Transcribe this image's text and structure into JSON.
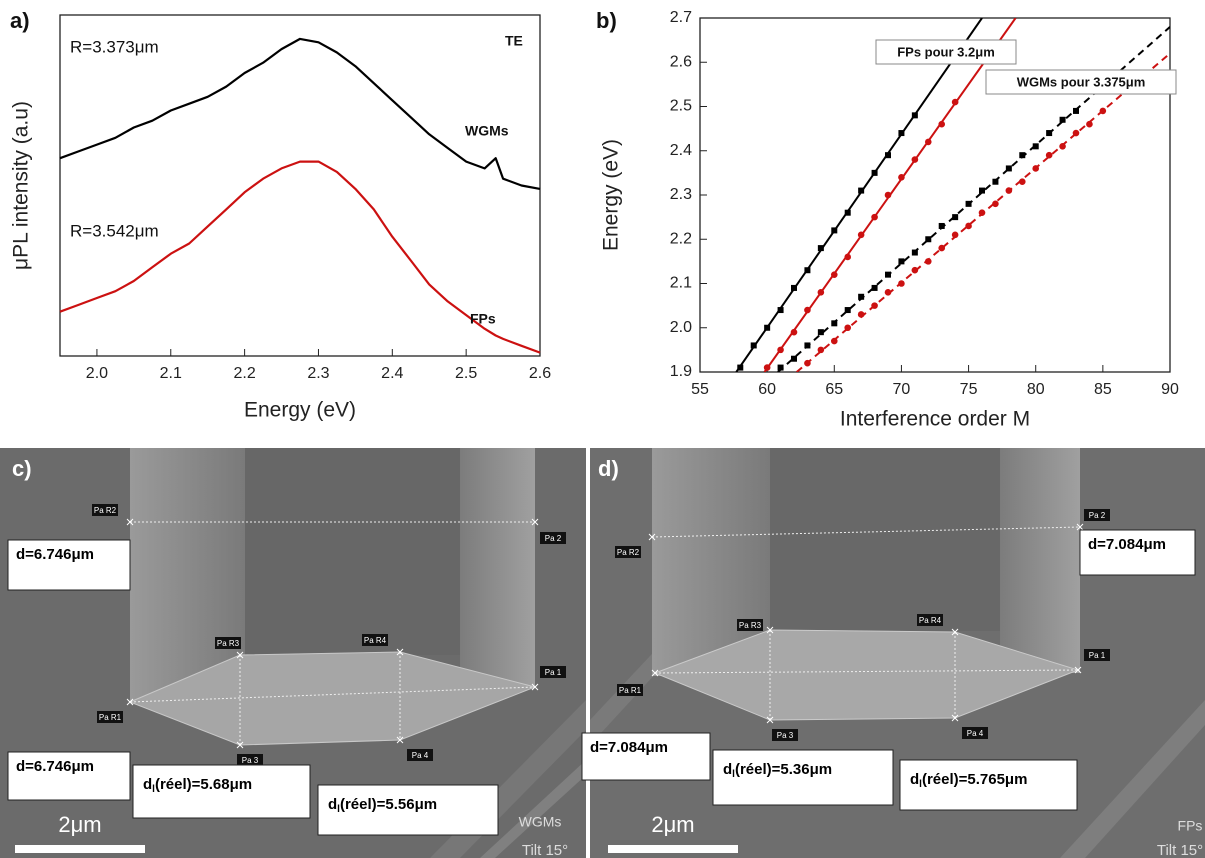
{
  "chart_data": [
    {
      "type": "line",
      "panel_label": "a)",
      "xlabel": "Energy (eV)",
      "ylabel": "μPL intensity (a.u)",
      "xlim": [
        1.95,
        2.6
      ],
      "xticks": [
        {
          "value": 2,
          "label": "2.0"
        },
        2.1,
        2.2,
        2.3,
        2.4,
        2.5,
        2.6
      ],
      "ylim": [
        0,
        10
      ],
      "x": [
        1.95,
        1.975,
        2,
        2.025,
        2.05,
        2.075,
        2.1,
        2.125,
        2.15,
        2.175,
        2.2,
        2.225,
        2.25,
        2.275,
        2.3,
        2.325,
        2.35,
        2.375,
        2.4,
        2.425,
        2.45,
        2.475,
        2.5,
        2.525,
        2.54,
        2.55,
        2.575,
        2.6
      ],
      "series": [
        {
          "color": "#000000",
          "values": [
            5.8,
            6.0,
            6.2,
            6.4,
            6.7,
            6.9,
            7.2,
            7.4,
            7.6,
            7.9,
            8.3,
            8.6,
            9.0,
            9.3,
            9.2,
            8.9,
            8.5,
            8.0,
            7.5,
            7.0,
            6.5,
            6.1,
            5.7,
            5.5,
            5.8,
            5.2,
            5.0,
            4.9
          ]
        },
        {
          "color": "#cc1111",
          "values": [
            1.3,
            1.5,
            1.7,
            1.9,
            2.2,
            2.6,
            3.0,
            3.3,
            3.8,
            4.3,
            4.8,
            5.2,
            5.5,
            5.7,
            5.7,
            5.4,
            4.9,
            4.3,
            3.5,
            2.8,
            2.1,
            1.6,
            1.2,
            0.8,
            0.6,
            0.5,
            0.3,
            0.1
          ]
        }
      ],
      "annotations": [
        {
          "text": "R=3.373μm"
        },
        {
          "text": "TE"
        },
        {
          "text": "WGMs"
        },
        {
          "text": "R=3.542μm"
        },
        {
          "text": "FPs"
        }
      ]
    },
    {
      "type": "scatter",
      "panel_label": "b)",
      "xlabel": "Interference order M",
      "ylabel": "Energy (eV)",
      "xlim": [
        55,
        90
      ],
      "xticks": [
        55,
        60,
        65,
        70,
        75,
        80,
        85,
        90
      ],
      "ylim": [
        1.9,
        2.7
      ],
      "yticks": [
        1.9,
        {
          "value": 2,
          "label": "2.0"
        },
        2.1,
        2.2,
        2.3,
        2.4,
        2.5,
        2.6,
        2.7
      ],
      "series": [
        {
          "color": "#000000",
          "style": "solid",
          "x": [
            57.7,
            76.0
          ],
          "values": [
            1.9,
            2.7
          ]
        },
        {
          "color": "#cc1111",
          "style": "solid",
          "x": [
            59.8,
            78.5
          ],
          "values": [
            1.9,
            2.7
          ]
        },
        {
          "color": "#000000",
          "style": "dashed",
          "x": [
            60.8,
            90
          ],
          "values": [
            1.9,
            2.68
          ]
        },
        {
          "color": "#cc1111",
          "style": "dashed",
          "x": [
            62.2,
            90
          ],
          "values": [
            1.9,
            2.62
          ]
        },
        {
          "color": "#000000",
          "marker": "square",
          "x": [
            58,
            59,
            60,
            61,
            62,
            63,
            64,
            65,
            66,
            67,
            68,
            69,
            70,
            71
          ],
          "values": [
            1.91,
            1.96,
            2.0,
            2.04,
            2.09,
            2.13,
            2.18,
            2.22,
            2.26,
            2.31,
            2.35,
            2.39,
            2.44,
            2.48
          ]
        },
        {
          "color": "#cc1111",
          "marker": "circle",
          "x": [
            60,
            61,
            62,
            63,
            64,
            65,
            66,
            67,
            68,
            69,
            70,
            71,
            72,
            73,
            74
          ],
          "values": [
            1.91,
            1.95,
            1.99,
            2.04,
            2.08,
            2.12,
            2.16,
            2.21,
            2.25,
            2.3,
            2.34,
            2.38,
            2.42,
            2.46,
            2.51
          ]
        },
        {
          "color": "#000000",
          "marker": "square",
          "x": [
            61,
            62,
            63,
            64,
            65,
            66,
            67,
            68,
            69,
            70,
            71,
            72,
            73,
            74,
            75,
            76,
            77,
            78,
            79,
            80,
            81,
            82,
            83
          ],
          "values": [
            1.91,
            1.93,
            1.96,
            1.99,
            2.01,
            2.04,
            2.07,
            2.09,
            2.12,
            2.15,
            2.17,
            2.2,
            2.23,
            2.25,
            2.28,
            2.31,
            2.33,
            2.36,
            2.39,
            2.41,
            2.44,
            2.47,
            2.49
          ]
        },
        {
          "color": "#cc1111",
          "marker": "circle",
          "x": [
            63,
            64,
            65,
            66,
            67,
            68,
            69,
            70,
            71,
            72,
            73,
            74,
            75,
            76,
            77,
            78,
            79,
            80,
            81,
            82,
            83,
            84,
            85
          ],
          "values": [
            1.92,
            1.95,
            1.97,
            2.0,
            2.03,
            2.05,
            2.08,
            2.1,
            2.13,
            2.15,
            2.18,
            2.21,
            2.23,
            2.26,
            2.28,
            2.31,
            2.33,
            2.36,
            2.39,
            2.41,
            2.44,
            2.46,
            2.49
          ]
        }
      ],
      "annotations": [
        {
          "text": "FPs pour 3.2μm"
        },
        {
          "text": "WGMs pour 3.375μm"
        }
      ]
    }
  ],
  "panels": [
    {
      "label": "c)",
      "scale": "2μm",
      "mode": "WGMs",
      "tilt": "Tilt 15°",
      "measurements": [
        {
          "text": "d=6.746μm"
        },
        {
          "text": "d=6.746μm"
        }
      ],
      "real": [
        {
          "main": "d",
          "sub": "l",
          "rest": "(réel)=5.68μm"
        },
        {
          "main": "d",
          "sub": "l",
          "rest": "(réel)=5.56μm"
        }
      ],
      "points": [
        "Pa R2",
        "Pa 2",
        "Pa R3",
        "Pa R4",
        "Pa 1",
        "Pa R1",
        "Pa 3",
        "Pa 4"
      ]
    },
    {
      "label": "d)",
      "scale": "2μm",
      "mode": "FPs",
      "tilt": "Tilt 15°",
      "measurements": [
        {
          "text": "d=7.084μm"
        },
        {
          "text": "d=7.084μm"
        }
      ],
      "real": [
        {
          "main": "d",
          "sub": "l",
          "rest": "(réel)=5.36μm"
        },
        {
          "main": "d",
          "sub": "l",
          "rest": "(réel)=5.765μm"
        }
      ],
      "points": [
        "Pa 2",
        "Pa R2",
        "Pa R3",
        "Pa R4",
        "Pa 1",
        "Pa R1",
        "Pa 3",
        "Pa 4"
      ]
    }
  ]
}
